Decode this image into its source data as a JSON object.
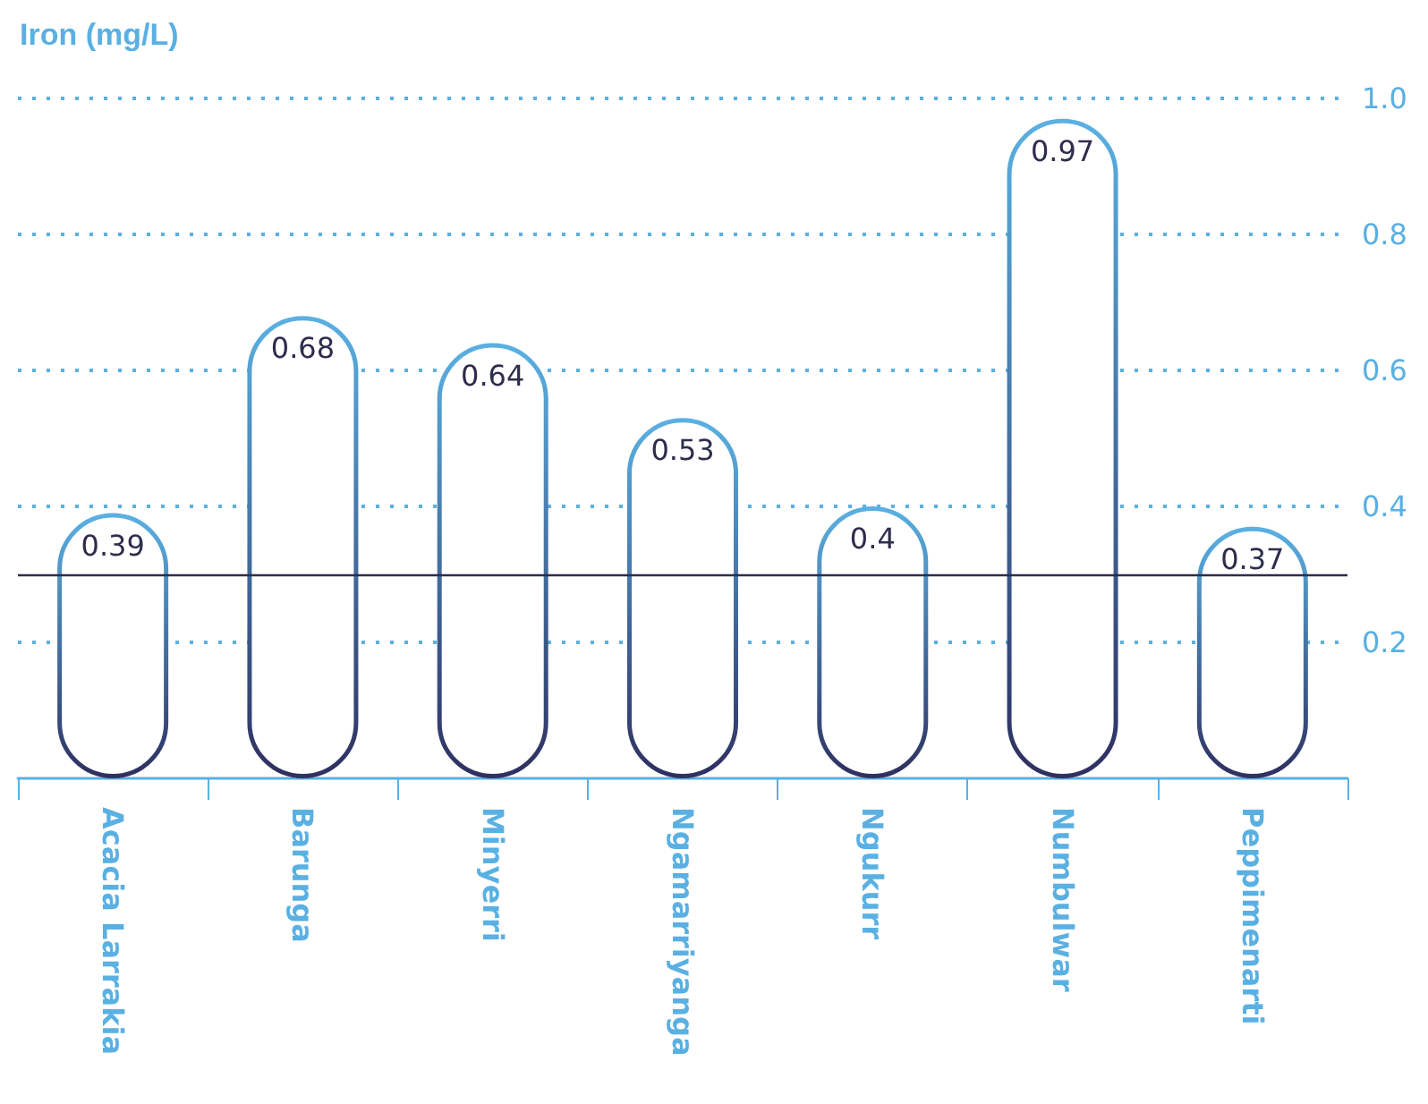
{
  "chart_data": {
    "type": "bar",
    "ylabel": "Iron (mg/L)",
    "categories": [
      "Acacia Larrakia",
      "Barunga",
      "Minyerri",
      "Ngamarriyanga",
      "Ngukurr",
      "Numbulwar",
      "Peppimenarti"
    ],
    "values": [
      0.39,
      0.68,
      0.64,
      0.53,
      0.4,
      0.97,
      0.37
    ],
    "color": "#5ab0e2",
    "ylim": [
      0,
      1
    ],
    "yticks": [
      0.2,
      0.4,
      0.6,
      0.8,
      {
        "value": 1,
        "label": "1.0"
      }
    ],
    "grid": "y",
    "data_labels": true,
    "ref_lines": [
      {
        "axis": "y",
        "value": 0.3,
        "color": "#2e2d4d"
      }
    ]
  }
}
